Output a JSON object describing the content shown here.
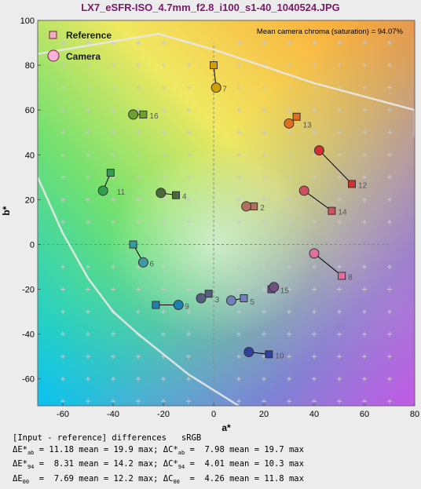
{
  "title": "LX7_eSFR-ISO_4.7mm_f2.8_i100_s1-40_1040524.JPG",
  "chart_data": {
    "type": "scatter",
    "xlabel": "a*",
    "ylabel": "b*",
    "xlim": [
      -70,
      80
    ],
    "ylim": [
      -72,
      100
    ],
    "xticks": [
      -60,
      -40,
      -20,
      0,
      20,
      40,
      60,
      80
    ],
    "yticks": [
      -60,
      -40,
      -20,
      0,
      20,
      40,
      60,
      80,
      100
    ],
    "legend": [
      "Reference",
      "Camera"
    ],
    "legend_position": "top-left",
    "annotation": "Mean camera chroma (saturation) = 94.07%",
    "points": [
      {
        "id": "2",
        "ref": [
          16,
          17
        ],
        "cam": [
          13,
          17
        ],
        "color": "#b07060"
      },
      {
        "id": "3",
        "ref": [
          -2,
          -22
        ],
        "cam": [
          -5,
          -24
        ],
        "color": "#556080"
      },
      {
        "id": "4",
        "ref": [
          -15,
          22
        ],
        "cam": [
          -21,
          23
        ],
        "color": "#4a6a3a"
      },
      {
        "id": "5",
        "ref": [
          12,
          -24
        ],
        "cam": [
          7,
          -25
        ],
        "color": "#7080b8"
      },
      {
        "id": "6",
        "ref": [
          -32,
          0
        ],
        "cam": [
          -28,
          -8
        ],
        "color": "#3a9aa0"
      },
      {
        "id": "7",
        "ref": [
          0,
          80
        ],
        "cam": [
          1,
          70
        ],
        "color": "#d0a000"
      },
      {
        "id": "8",
        "ref": [
          51,
          -14
        ],
        "cam": [
          40,
          -4
        ],
        "color": "#e070a0"
      },
      {
        "id": "9",
        "ref": [
          -23,
          -27
        ],
        "cam": [
          -14,
          -27
        ],
        "color": "#2080b0"
      },
      {
        "id": "10",
        "ref": [
          22,
          -49
        ],
        "cam": [
          14,
          -48
        ],
        "color": "#3040a0"
      },
      {
        "id": "11",
        "ref": [
          -41,
          32
        ],
        "cam": [
          -44,
          24
        ],
        "color": "#30a050"
      },
      {
        "id": "12",
        "ref": [
          55,
          27
        ],
        "cam": [
          42,
          42
        ],
        "color": "#d03030"
      },
      {
        "id": "13",
        "ref": [
          33,
          57
        ],
        "cam": [
          30,
          54
        ],
        "color": "#e07020"
      },
      {
        "id": "14",
        "ref": [
          47,
          15
        ],
        "cam": [
          36,
          24
        ],
        "color": "#d05060"
      },
      {
        "id": "15",
        "ref": [
          23,
          -20
        ],
        "cam": [
          24,
          -19
        ],
        "color": "#705080"
      },
      {
        "id": "16",
        "ref": [
          -28,
          58
        ],
        "cam": [
          -32,
          58
        ],
        "color": "#6aa030"
      }
    ]
  },
  "stats": {
    "header": "[Input - reference] differences   sRGB",
    "rows": [
      {
        "l1": "ΔE*",
        "s1": "ab",
        "v1": " = 11.18 mean = 19.9 max; ",
        "l2": "ΔC*",
        "s2": "ab",
        "v2": " =  7.98 mean = 19.7 max"
      },
      {
        "l1": "ΔE*",
        "s1": "94",
        "v1": " =  8.31 mean = 14.2 max; ",
        "l2": "ΔC*",
        "s2": "94",
        "v2": " =  4.01 mean = 10.3 max"
      },
      {
        "l1": "ΔE",
        "s1": "00",
        "v1": "  =  7.69 mean = 12.2 max; ",
        "l2": "ΔC",
        "s2": "00",
        "v2": "  =  4.26 mean = 11.8 max"
      }
    ]
  }
}
